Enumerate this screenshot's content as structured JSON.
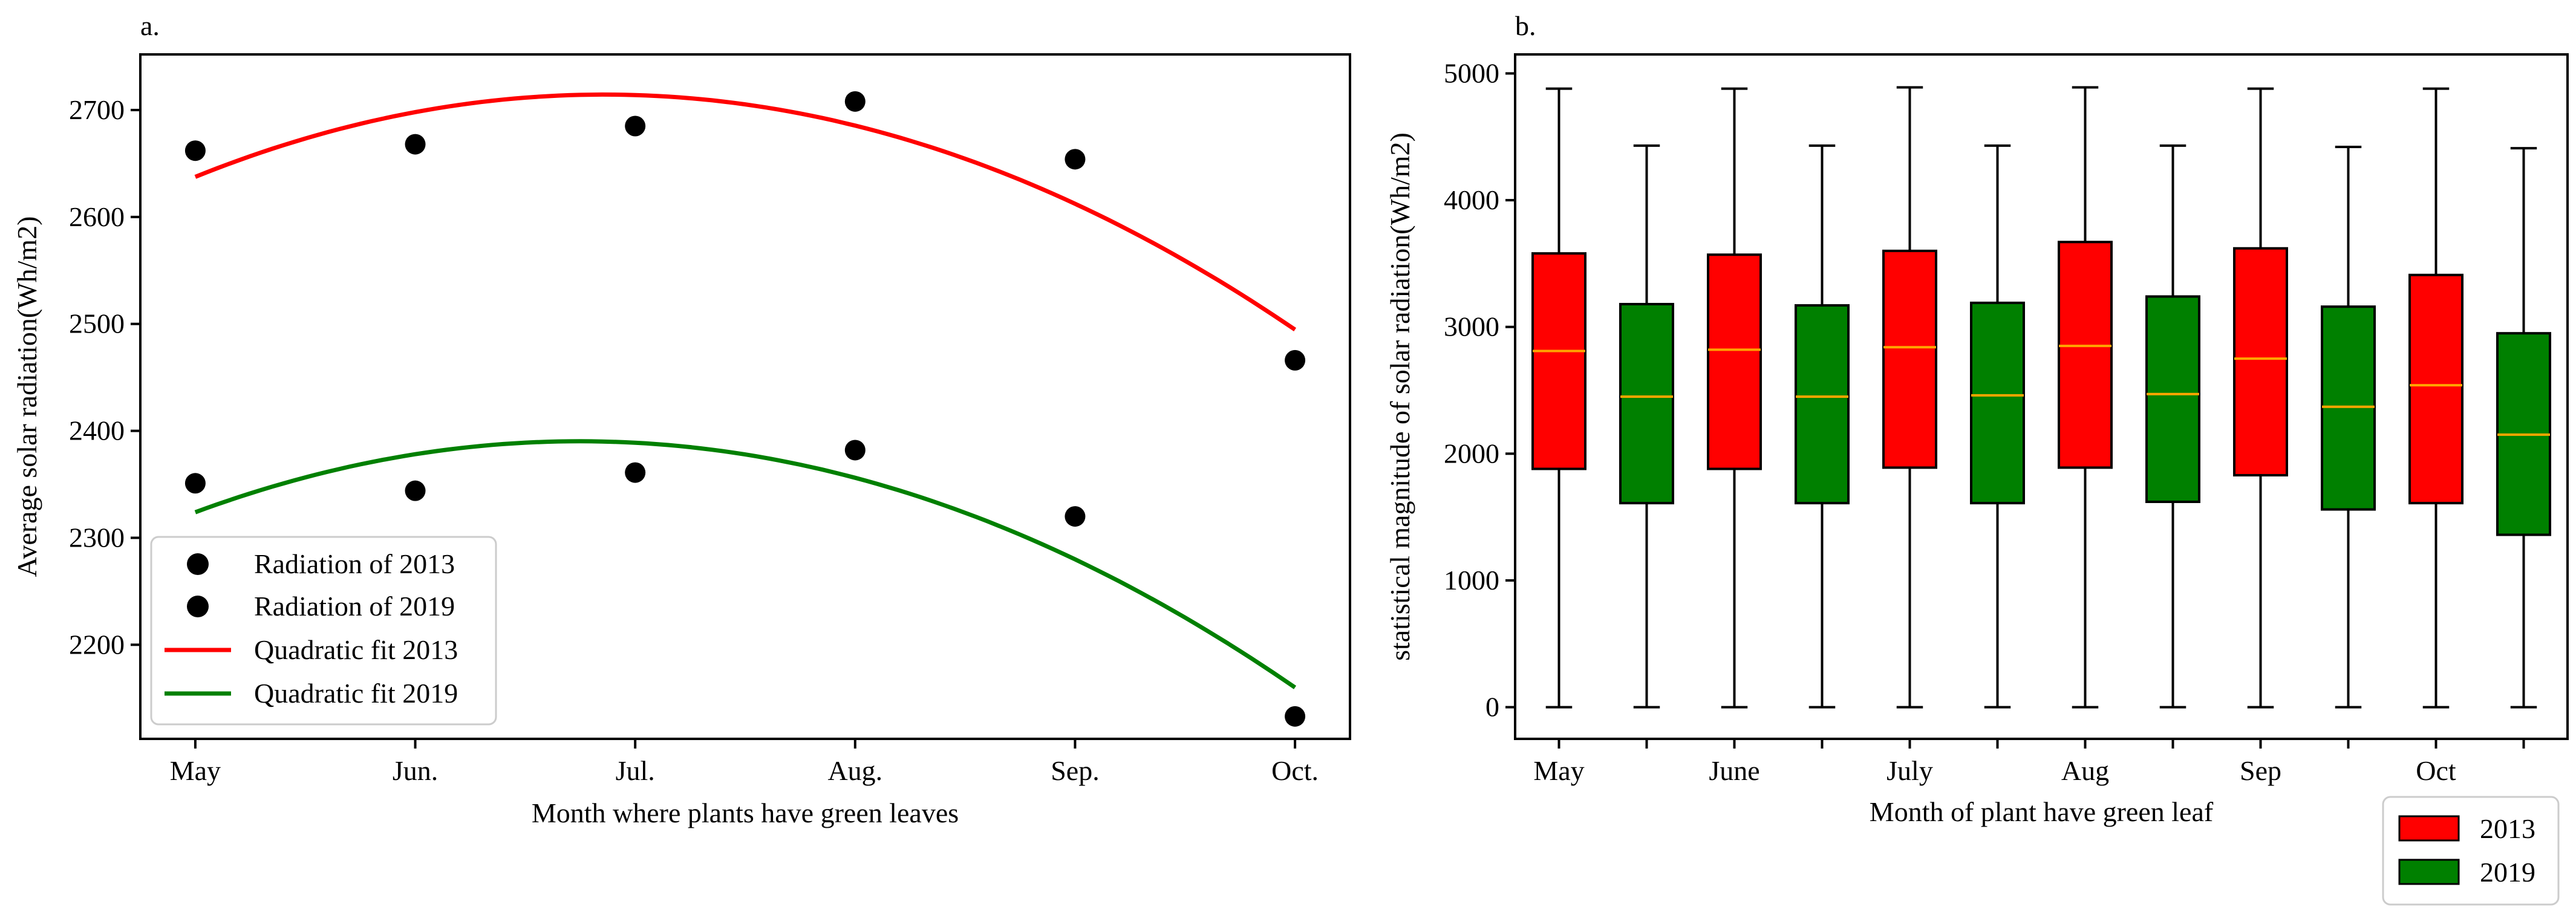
{
  "chart_data": [
    {
      "panel_label": "a.",
      "type": "scatter",
      "categories": [
        "May",
        "Jun.",
        "Jul.",
        "Aug.",
        "Sep.",
        "Oct."
      ],
      "xlabel": "Month where plants have green leaves",
      "ylabel": "Average solar radiation(Wh/m2)",
      "ylim": [
        2112,
        2752
      ],
      "yticks": [
        2200,
        2300,
        2400,
        2500,
        2600,
        2700
      ],
      "xlim": [
        -0.25,
        5.25
      ],
      "series": [
        {
          "name": "Radiation of 2013",
          "kind": "points",
          "color": "#000000",
          "values": [
            2662,
            2668,
            2685,
            2708,
            2654,
            2466
          ]
        },
        {
          "name": "Radiation of 2019",
          "kind": "points",
          "color": "#000000",
          "values": [
            2351,
            2344,
            2361,
            2382,
            2320,
            2133
          ]
        },
        {
          "name": "Quadratic fit 2013",
          "kind": "curve",
          "color": "#ff0000",
          "fit_values": [
            2637,
            2700,
            2712,
            2685,
            2614,
            2494
          ]
        },
        {
          "name": "Quadratic fit 2019",
          "kind": "curve",
          "color": "#008000",
          "fit_values": [
            2324,
            2378,
            2389,
            2356,
            2280,
            2160
          ]
        }
      ],
      "legend": "lower-left"
    },
    {
      "panel_label": "b.",
      "type": "box",
      "xlabel": "Month of plant have green leaf",
      "ylabel": "statistical magnitude of solar radiation(Wh/m2)",
      "ylim": [
        -250,
        5150
      ],
      "yticks": [
        0,
        1000,
        2000,
        3000,
        4000,
        5000
      ],
      "xlim": [
        0.5,
        12.5
      ],
      "x_tick_positions": [
        1,
        2,
        3,
        4,
        5,
        6,
        7,
        8,
        9,
        10,
        11,
        12
      ],
      "x_tick_labels": [
        "May",
        "",
        "June",
        "",
        "July",
        "",
        "Aug",
        "",
        "Sep",
        "",
        "Oct",
        ""
      ],
      "colors": {
        "2013": "#ff0000",
        "2019": "#008000",
        "median": "#ffa500"
      },
      "boxes": [
        {
          "position": 1,
          "year": "2013",
          "min": 0,
          "q1": 1880,
          "median": 2810,
          "q3": 3580,
          "max": 4880
        },
        {
          "position": 2,
          "year": "2019",
          "min": 0,
          "q1": 1610,
          "median": 2450,
          "q3": 3180,
          "max": 4430
        },
        {
          "position": 3,
          "year": "2013",
          "min": 0,
          "q1": 1880,
          "median": 2820,
          "q3": 3570,
          "max": 4880
        },
        {
          "position": 4,
          "year": "2019",
          "min": 0,
          "q1": 1610,
          "median": 2450,
          "q3": 3170,
          "max": 4430
        },
        {
          "position": 5,
          "year": "2013",
          "min": 0,
          "q1": 1890,
          "median": 2840,
          "q3": 3600,
          "max": 4890
        },
        {
          "position": 6,
          "year": "2019",
          "min": 0,
          "q1": 1610,
          "median": 2460,
          "q3": 3190,
          "max": 4430
        },
        {
          "position": 7,
          "year": "2013",
          "min": 0,
          "q1": 1890,
          "median": 2850,
          "q3": 3670,
          "max": 4890
        },
        {
          "position": 8,
          "year": "2019",
          "min": 0,
          "q1": 1620,
          "median": 2470,
          "q3": 3240,
          "max": 4430
        },
        {
          "position": 9,
          "year": "2013",
          "min": 0,
          "q1": 1830,
          "median": 2750,
          "q3": 3620,
          "max": 4880
        },
        {
          "position": 10,
          "year": "2019",
          "min": 0,
          "q1": 1560,
          "median": 2370,
          "q3": 3160,
          "max": 4420
        },
        {
          "position": 11,
          "year": "2013",
          "min": 0,
          "q1": 1610,
          "median": 2540,
          "q3": 3410,
          "max": 4880
        },
        {
          "position": 12,
          "year": "2019",
          "min": 0,
          "q1": 1360,
          "median": 2150,
          "q3": 2950,
          "max": 4410
        }
      ],
      "legend_entries": [
        "2013",
        "2019"
      ],
      "legend": "outside-lower-right"
    }
  ]
}
